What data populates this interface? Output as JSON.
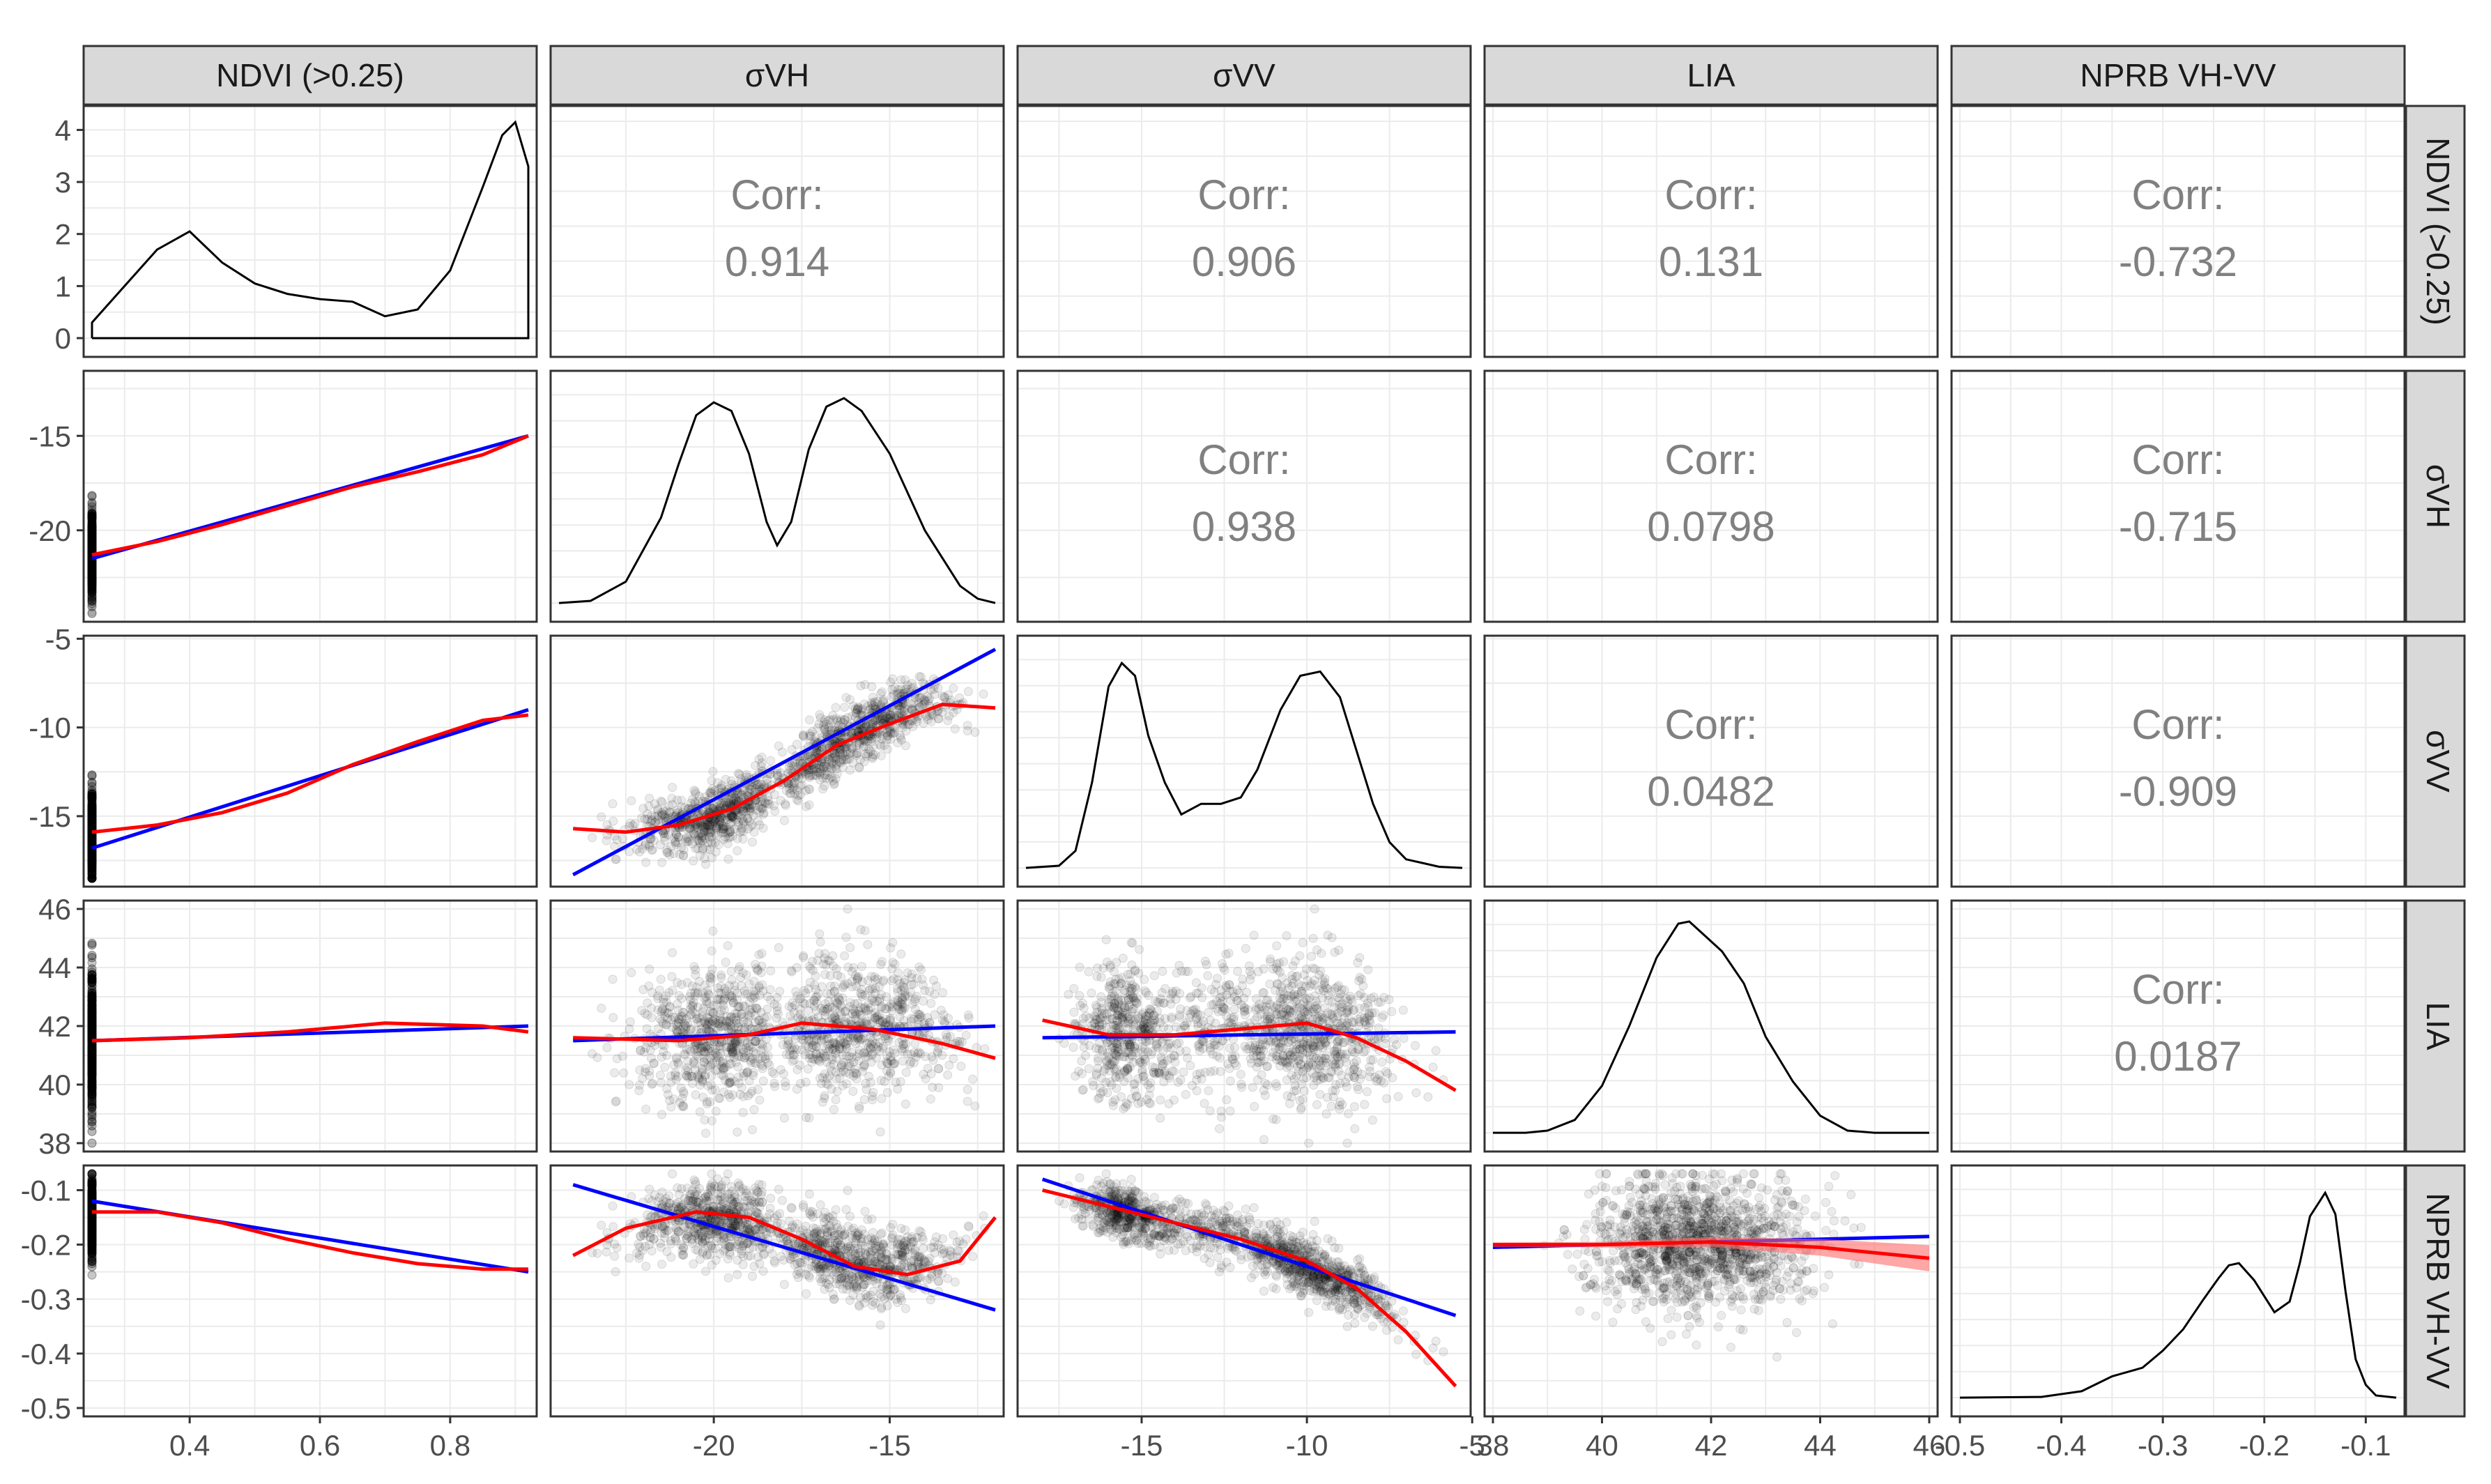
{
  "chart_data": {
    "type": "pairs",
    "variables": [
      "NDVI (>0.25)",
      "σVH",
      "σVV",
      "LIA",
      "NPRB VH-VV"
    ],
    "ranges": [
      [
        0.25,
        0.92
      ],
      [
        -24.4,
        -12.0
      ],
      [
        -18.5,
        -5.3
      ],
      [
        38.0,
        46.0
      ],
      [
        -0.5,
        -0.07
      ]
    ],
    "ticks": [
      {
        "values": [
          0.4,
          0.6,
          0.8
        ],
        "labels": [
          "0.4",
          "0.6",
          "0.8"
        ]
      },
      {
        "values": [
          -20,
          -15
        ],
        "labels": [
          "-20",
          "-15"
        ]
      },
      {
        "values": [
          -15,
          -10,
          -5
        ],
        "labels": [
          "-15",
          "-10",
          "-5"
        ]
      },
      {
        "values": [
          38,
          40,
          42,
          44,
          46
        ],
        "labels": [
          "38",
          "40",
          "42",
          "44",
          "46"
        ]
      },
      {
        "values": [
          -0.5,
          -0.4,
          -0.3,
          -0.2,
          -0.1
        ],
        "labels": [
          "-0.5",
          "-0.4",
          "-0.3",
          "-0.2",
          "-0.1"
        ]
      }
    ],
    "density_y_axis": {
      "range": [
        -0.2,
        4.3
      ],
      "ticks": [
        0,
        1,
        2,
        3,
        4
      ],
      "labels": [
        "0",
        "1",
        "2",
        "3",
        "4"
      ]
    },
    "correlations": [
      {
        "row": 0,
        "col": 1,
        "label": "Corr:",
        "value": "0.914"
      },
      {
        "row": 0,
        "col": 2,
        "label": "Corr:",
        "value": "0.906"
      },
      {
        "row": 0,
        "col": 3,
        "label": "Corr:",
        "value": "0.131"
      },
      {
        "row": 0,
        "col": 4,
        "label": "Corr:",
        "value": "-0.732"
      },
      {
        "row": 1,
        "col": 2,
        "label": "Corr:",
        "value": "0.938"
      },
      {
        "row": 1,
        "col": 3,
        "label": "Corr:",
        "value": "0.0798"
      },
      {
        "row": 1,
        "col": 4,
        "label": "Corr:",
        "value": "-0.715"
      },
      {
        "row": 2,
        "col": 3,
        "label": "Corr:",
        "value": "0.0482"
      },
      {
        "row": 2,
        "col": 4,
        "label": "Corr:",
        "value": "-0.909"
      },
      {
        "row": 3,
        "col": 4,
        "label": "Corr:",
        "value": "0.0187"
      }
    ],
    "densities": [
      {
        "x": [
          0.25,
          0.25,
          0.3,
          0.35,
          0.4,
          0.45,
          0.5,
          0.55,
          0.6,
          0.65,
          0.7,
          0.75,
          0.8,
          0.85,
          0.88,
          0.9,
          0.92,
          0.92,
          0.25
        ],
        "y": [
          0.0,
          0.3,
          1.0,
          1.7,
          2.05,
          1.45,
          1.05,
          0.85,
          0.75,
          0.7,
          0.42,
          0.55,
          1.3,
          2.9,
          3.9,
          4.15,
          3.3,
          0.0,
          0.0
        ]
      },
      {
        "x": [
          -24.4,
          -23.5,
          -22.5,
          -21.5,
          -21.0,
          -20.5,
          -20.0,
          -19.5,
          -19.0,
          -18.5,
          -18.2,
          -17.8,
          -17.3,
          -16.8,
          -16.3,
          -15.8,
          -15.0,
          -14.0,
          -13.0,
          -12.5,
          -12.0
        ],
        "y": [
          0.0,
          0.01,
          0.1,
          0.4,
          0.65,
          0.88,
          0.94,
          0.9,
          0.7,
          0.38,
          0.27,
          0.38,
          0.72,
          0.92,
          0.96,
          0.9,
          0.7,
          0.34,
          0.08,
          0.02,
          0.0
        ]
      },
      {
        "x": [
          -18.5,
          -17.5,
          -17.0,
          -16.5,
          -16.0,
          -15.6,
          -15.2,
          -14.8,
          -14.3,
          -13.8,
          -13.2,
          -12.6,
          -12.0,
          -11.5,
          -10.8,
          -10.2,
          -9.6,
          -9.0,
          -8.5,
          -8.0,
          -7.5,
          -7.0,
          -6.0,
          -5.3
        ],
        "y": [
          0.0,
          0.01,
          0.08,
          0.4,
          0.85,
          0.96,
          0.9,
          0.62,
          0.4,
          0.25,
          0.3,
          0.3,
          0.33,
          0.46,
          0.74,
          0.9,
          0.92,
          0.8,
          0.55,
          0.3,
          0.12,
          0.04,
          0.005,
          0.0
        ]
      },
      {
        "x": [
          38.0,
          38.6,
          39.0,
          39.5,
          40.0,
          40.5,
          41.0,
          41.4,
          41.6,
          41.9,
          42.2,
          42.6,
          43.0,
          43.5,
          44.0,
          44.5,
          45.0,
          46.0
        ],
        "y": [
          0.0,
          0.0,
          0.01,
          0.06,
          0.22,
          0.5,
          0.82,
          0.98,
          0.99,
          0.92,
          0.85,
          0.7,
          0.45,
          0.24,
          0.08,
          0.01,
          0.0,
          0.0
        ]
      },
      {
        "x": [
          -0.5,
          -0.42,
          -0.38,
          -0.35,
          -0.32,
          -0.3,
          -0.28,
          -0.26,
          -0.245,
          -0.235,
          -0.225,
          -0.21,
          -0.19,
          -0.175,
          -0.165,
          -0.155,
          -0.14,
          -0.13,
          -0.12,
          -0.11,
          -0.1,
          -0.09,
          -0.07
        ],
        "y": [
          0.0,
          0.003,
          0.03,
          0.1,
          0.14,
          0.22,
          0.32,
          0.46,
          0.56,
          0.62,
          0.63,
          0.55,
          0.4,
          0.45,
          0.63,
          0.85,
          0.96,
          0.86,
          0.5,
          0.18,
          0.06,
          0.01,
          0.0
        ]
      }
    ],
    "scatter": [
      {
        "row": 1,
        "col": 0,
        "sd": 1.1,
        "center": [
          [
            0.25,
            -21.2
          ],
          [
            0.4,
            -20.3
          ],
          [
            0.5,
            -19.2
          ],
          [
            0.6,
            -18.0
          ],
          [
            0.7,
            -17.2
          ],
          [
            0.8,
            -16.3
          ],
          [
            0.92,
            -15.0
          ]
        ]
      },
      {
        "row": 2,
        "col": 0,
        "sd": 1.2,
        "center": [
          [
            0.25,
            -16.0
          ],
          [
            0.4,
            -15.3
          ],
          [
            0.5,
            -14.3
          ],
          [
            0.6,
            -12.8
          ],
          [
            0.7,
            -11.5
          ],
          [
            0.8,
            -10.2
          ],
          [
            0.92,
            -9.0
          ]
        ]
      },
      {
        "row": 3,
        "col": 0,
        "sd": 1.2,
        "center": [
          [
            0.25,
            41.5
          ],
          [
            0.5,
            41.7
          ],
          [
            0.7,
            42.0
          ],
          [
            0.92,
            41.8
          ]
        ]
      },
      {
        "row": 4,
        "col": 0,
        "sd": 0.035,
        "center": [
          [
            0.25,
            -0.15
          ],
          [
            0.4,
            -0.15
          ],
          [
            0.5,
            -0.18
          ],
          [
            0.6,
            -0.21
          ],
          [
            0.7,
            -0.22
          ],
          [
            0.8,
            -0.24
          ],
          [
            0.92,
            -0.245
          ]
        ]
      },
      {
        "row": 2,
        "col": 1,
        "sd": 0.9,
        "center": [
          [
            -24.0,
            -15.8
          ],
          [
            -22.0,
            -15.8
          ],
          [
            -20.0,
            -15.2
          ],
          [
            -18.0,
            -13.0
          ],
          [
            -16.0,
            -10.3
          ],
          [
            -14.0,
            -8.8
          ],
          [
            -12.2,
            -8.9
          ]
        ]
      },
      {
        "row": 3,
        "col": 1,
        "sd": 1.2,
        "center": [
          [
            -24.0,
            41.6
          ],
          [
            -20.0,
            41.6
          ],
          [
            -17.0,
            42.0
          ],
          [
            -15.0,
            41.9
          ],
          [
            -12.2,
            41.0
          ]
        ]
      },
      {
        "row": 4,
        "col": 1,
        "sd": 0.035,
        "center": [
          [
            -24.0,
            -0.21
          ],
          [
            -21.0,
            -0.15
          ],
          [
            -19.0,
            -0.16
          ],
          [
            -17.0,
            -0.21
          ],
          [
            -15.0,
            -0.25
          ],
          [
            -13.5,
            -0.24
          ],
          [
            -12.2,
            -0.17
          ]
        ]
      },
      {
        "row": 3,
        "col": 2,
        "sd": 1.2,
        "center": [
          [
            -18.0,
            42.2
          ],
          [
            -15.0,
            41.7
          ],
          [
            -12.0,
            41.8
          ],
          [
            -10.0,
            42.0
          ],
          [
            -8.0,
            41.2
          ],
          [
            -6.0,
            40.0
          ]
        ]
      },
      {
        "row": 4,
        "col": 2,
        "sd": 0.025,
        "center": [
          [
            -18.0,
            -0.1
          ],
          [
            -15.0,
            -0.15
          ],
          [
            -12.0,
            -0.19
          ],
          [
            -10.0,
            -0.24
          ],
          [
            -8.0,
            -0.3
          ],
          [
            -6.5,
            -0.4
          ]
        ]
      },
      {
        "row": 4,
        "col": 3,
        "sd": 0.06,
        "center": [
          [
            38.5,
            -0.2
          ],
          [
            42.0,
            -0.2
          ],
          [
            45.5,
            -0.21
          ]
        ]
      }
    ],
    "lm_fits": [
      {
        "row": 1,
        "col": 0,
        "points": [
          [
            0.25,
            -21.5
          ],
          [
            0.92,
            -15.0
          ]
        ]
      },
      {
        "row": 2,
        "col": 0,
        "points": [
          [
            0.25,
            -16.8
          ],
          [
            0.92,
            -9.0
          ]
        ]
      },
      {
        "row": 3,
        "col": 0,
        "points": [
          [
            0.25,
            41.5
          ],
          [
            0.92,
            42.0
          ]
        ]
      },
      {
        "row": 4,
        "col": 0,
        "points": [
          [
            0.25,
            -0.12
          ],
          [
            0.92,
            -0.25
          ]
        ]
      },
      {
        "row": 2,
        "col": 1,
        "points": [
          [
            -24.0,
            -18.3
          ],
          [
            -12.0,
            -5.6
          ]
        ]
      },
      {
        "row": 3,
        "col": 1,
        "points": [
          [
            -24.0,
            41.5
          ],
          [
            -12.0,
            42.0
          ]
        ]
      },
      {
        "row": 4,
        "col": 1,
        "points": [
          [
            -24.0,
            -0.09
          ],
          [
            -12.0,
            -0.32
          ]
        ]
      },
      {
        "row": 3,
        "col": 2,
        "points": [
          [
            -18.0,
            41.6
          ],
          [
            -5.5,
            41.8
          ]
        ]
      },
      {
        "row": 4,
        "col": 2,
        "points": [
          [
            -18.0,
            -0.08
          ],
          [
            -5.5,
            -0.33
          ]
        ]
      },
      {
        "row": 4,
        "col": 3,
        "points": [
          [
            38.0,
            -0.205
          ],
          [
            46.0,
            -0.185
          ]
        ]
      }
    ],
    "loess_fits": [
      {
        "row": 1,
        "col": 0,
        "points": [
          [
            0.25,
            -21.3
          ],
          [
            0.35,
            -20.6
          ],
          [
            0.45,
            -19.7
          ],
          [
            0.55,
            -18.7
          ],
          [
            0.65,
            -17.7
          ],
          [
            0.75,
            -16.9
          ],
          [
            0.85,
            -16.0
          ],
          [
            0.92,
            -15.0
          ]
        ]
      },
      {
        "row": 2,
        "col": 0,
        "points": [
          [
            0.25,
            -15.9
          ],
          [
            0.35,
            -15.5
          ],
          [
            0.45,
            -14.8
          ],
          [
            0.55,
            -13.7
          ],
          [
            0.65,
            -12.1
          ],
          [
            0.75,
            -10.8
          ],
          [
            0.85,
            -9.6
          ],
          [
            0.92,
            -9.3
          ]
        ]
      },
      {
        "row": 3,
        "col": 0,
        "points": [
          [
            0.25,
            41.5
          ],
          [
            0.4,
            41.6
          ],
          [
            0.55,
            41.8
          ],
          [
            0.7,
            42.1
          ],
          [
            0.85,
            42.0
          ],
          [
            0.92,
            41.8
          ]
        ]
      },
      {
        "row": 4,
        "col": 0,
        "points": [
          [
            0.25,
            -0.14
          ],
          [
            0.35,
            -0.14
          ],
          [
            0.45,
            -0.16
          ],
          [
            0.55,
            -0.19
          ],
          [
            0.65,
            -0.215
          ],
          [
            0.75,
            -0.235
          ],
          [
            0.85,
            -0.245
          ],
          [
            0.92,
            -0.245
          ]
        ]
      },
      {
        "row": 2,
        "col": 1,
        "points": [
          [
            -24.0,
            -15.7
          ],
          [
            -22.5,
            -15.9
          ],
          [
            -21.0,
            -15.5
          ],
          [
            -19.5,
            -14.6
          ],
          [
            -18.0,
            -13.0
          ],
          [
            -16.5,
            -11.0
          ],
          [
            -15.0,
            -9.8
          ],
          [
            -13.5,
            -8.7
          ],
          [
            -12.0,
            -8.9
          ]
        ]
      },
      {
        "row": 3,
        "col": 1,
        "points": [
          [
            -24.0,
            41.6
          ],
          [
            -21.0,
            41.5
          ],
          [
            -19.0,
            41.7
          ],
          [
            -17.5,
            42.1
          ],
          [
            -15.5,
            41.9
          ],
          [
            -13.5,
            41.4
          ],
          [
            -12.0,
            40.9
          ]
        ]
      },
      {
        "row": 4,
        "col": 1,
        "points": [
          [
            -24.0,
            -0.22
          ],
          [
            -22.5,
            -0.17
          ],
          [
            -20.5,
            -0.14
          ],
          [
            -19.0,
            -0.15
          ],
          [
            -17.5,
            -0.19
          ],
          [
            -16.0,
            -0.24
          ],
          [
            -14.5,
            -0.255
          ],
          [
            -13.0,
            -0.23
          ],
          [
            -12.0,
            -0.15
          ]
        ]
      },
      {
        "row": 3,
        "col": 2,
        "points": [
          [
            -18.0,
            42.2
          ],
          [
            -16.0,
            41.7
          ],
          [
            -14.0,
            41.7
          ],
          [
            -12.0,
            41.9
          ],
          [
            -10.0,
            42.1
          ],
          [
            -8.5,
            41.6
          ],
          [
            -7.0,
            40.8
          ],
          [
            -5.5,
            39.8
          ]
        ]
      },
      {
        "row": 4,
        "col": 2,
        "points": [
          [
            -18.0,
            -0.1
          ],
          [
            -16.0,
            -0.13
          ],
          [
            -14.0,
            -0.16
          ],
          [
            -12.0,
            -0.19
          ],
          [
            -10.0,
            -0.23
          ],
          [
            -8.5,
            -0.28
          ],
          [
            -7.0,
            -0.36
          ],
          [
            -5.5,
            -0.46
          ]
        ]
      },
      {
        "row": 4,
        "col": 3,
        "points": [
          [
            38.0,
            -0.2
          ],
          [
            40.0,
            -0.2
          ],
          [
            42.0,
            -0.195
          ],
          [
            44.0,
            -0.205
          ],
          [
            46.0,
            -0.225
          ]
        ]
      }
    ],
    "colors": {
      "points": "#000000",
      "lm": "#0000ff",
      "loess": "#ff0000",
      "ribbon": "#ff6b6b",
      "strip": "#d9d9d9",
      "grid": "#ebebeb",
      "corr_text": "#808080"
    }
  }
}
